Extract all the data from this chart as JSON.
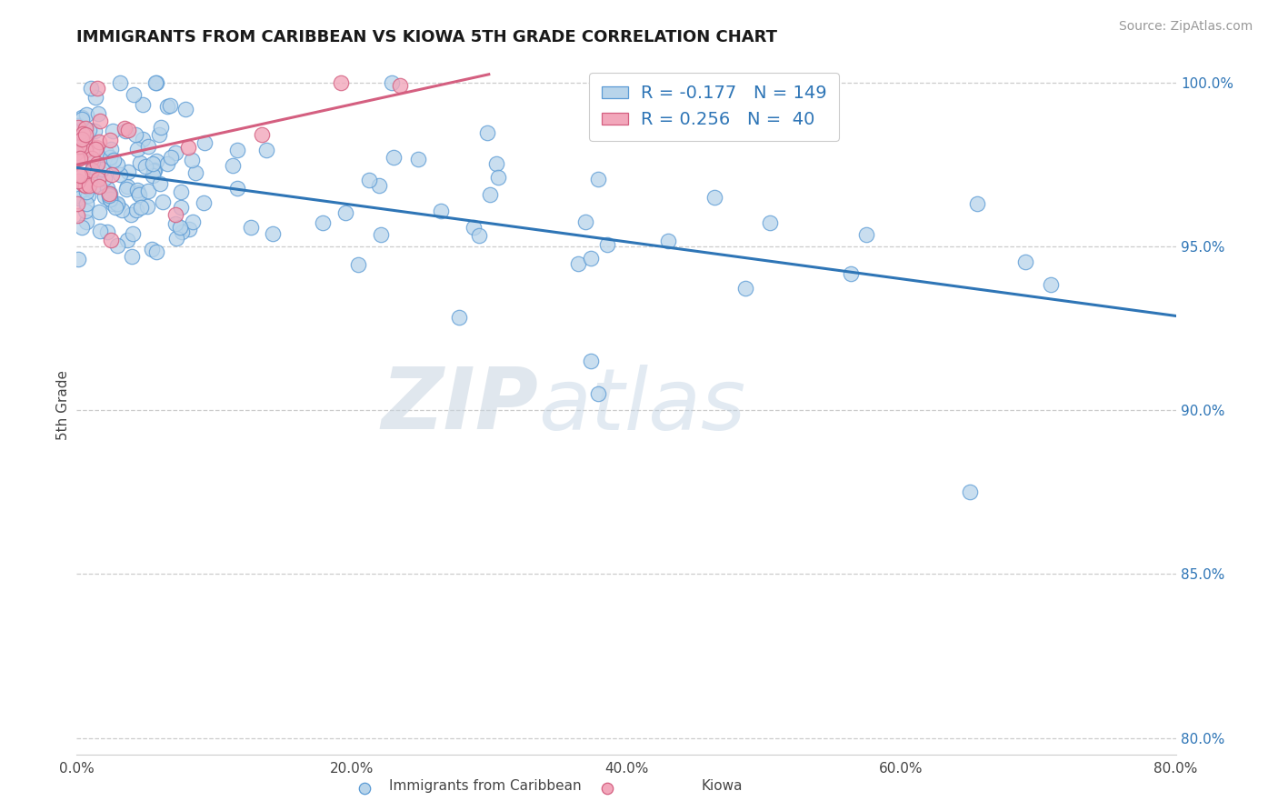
{
  "title": "IMMIGRANTS FROM CARIBBEAN VS KIOWA 5TH GRADE CORRELATION CHART",
  "source_text": "Source: ZipAtlas.com",
  "ylabel": "5th Grade",
  "x_min": 0.0,
  "x_max": 0.8,
  "y_min": 0.795,
  "y_max": 1.008,
  "y_ticks": [
    0.8,
    0.85,
    0.9,
    0.95,
    1.0
  ],
  "y_tick_labels": [
    "80.0%",
    "85.0%",
    "90.0%",
    "95.0%",
    "100.0%"
  ],
  "x_ticks": [
    0.0,
    0.2,
    0.4,
    0.6,
    0.8
  ],
  "x_tick_labels": [
    "0.0%",
    "20.0%",
    "40.0%",
    "60.0%",
    "80.0%"
  ],
  "blue_fill": "#b8d4ea",
  "blue_edge": "#5b9bd5",
  "blue_line_color": "#2e75b6",
  "pink_fill": "#f2a7bb",
  "pink_edge": "#d45f80",
  "pink_line_color": "#d45f80",
  "R_blue": -0.177,
  "N_blue": 149,
  "R_pink": 0.256,
  "N_pink": 40,
  "legend_color": "#2e75b6",
  "watermark_zip": "ZIP",
  "watermark_atlas": "atlas",
  "blue_line_x0": 0.0,
  "blue_line_x1": 0.8,
  "blue_line_y0": 0.972,
  "blue_line_y1": 0.95,
  "pink_line_x0": 0.0,
  "pink_line_x1": 0.3,
  "pink_line_y0": 0.972,
  "pink_line_y1": 0.998
}
